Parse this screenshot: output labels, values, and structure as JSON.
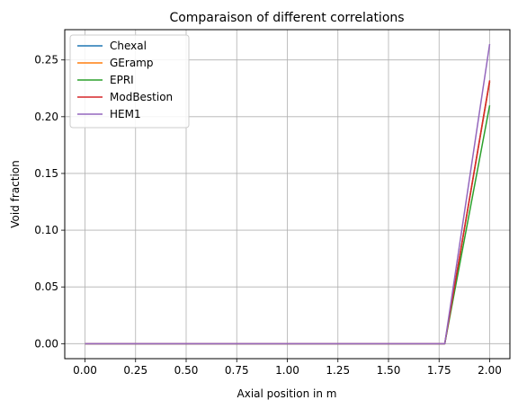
{
  "chart_data": {
    "type": "line",
    "title": "Comparaison of different correlations",
    "xlabel": "Axial position in m",
    "ylabel": "Void fraction",
    "xlim": [
      -0.1,
      2.1
    ],
    "ylim": [
      -0.0132,
      0.2767
    ],
    "xticks": [
      0.0,
      0.25,
      0.5,
      0.75,
      1.0,
      1.25,
      1.5,
      1.75,
      2.0
    ],
    "xtick_labels": [
      "0.00",
      "0.25",
      "0.50",
      "0.75",
      "1.00",
      "1.25",
      "1.50",
      "1.75",
      "2.00"
    ],
    "yticks": [
      0.0,
      0.05,
      0.1,
      0.15,
      0.2,
      0.25
    ],
    "ytick_labels": [
      "0.00",
      "0.05",
      "0.10",
      "0.15",
      "0.20",
      "0.25"
    ],
    "grid": true,
    "legend_position": "upper-left",
    "series": [
      {
        "name": "Chexal",
        "color": "#1f77b4",
        "x": [
          0.0,
          1.778,
          2.0
        ],
        "y": [
          0.0,
          0.0,
          0.231
        ]
      },
      {
        "name": "GEramp",
        "color": "#ff7f0e",
        "x": [
          0.0,
          1.778,
          2.0
        ],
        "y": [
          0.0,
          0.0,
          0.231
        ]
      },
      {
        "name": "EPRI",
        "color": "#2ca02c",
        "x": [
          0.0,
          1.778,
          2.0
        ],
        "y": [
          0.0,
          0.0,
          0.21
        ]
      },
      {
        "name": "ModBestion",
        "color": "#d62728",
        "x": [
          0.0,
          1.778,
          2.0
        ],
        "y": [
          0.0,
          0.0,
          0.232
        ]
      },
      {
        "name": "HEM1",
        "color": "#9467bd",
        "x": [
          0.0,
          1.778,
          2.0
        ],
        "y": [
          0.0,
          0.0,
          0.264
        ]
      }
    ]
  }
}
